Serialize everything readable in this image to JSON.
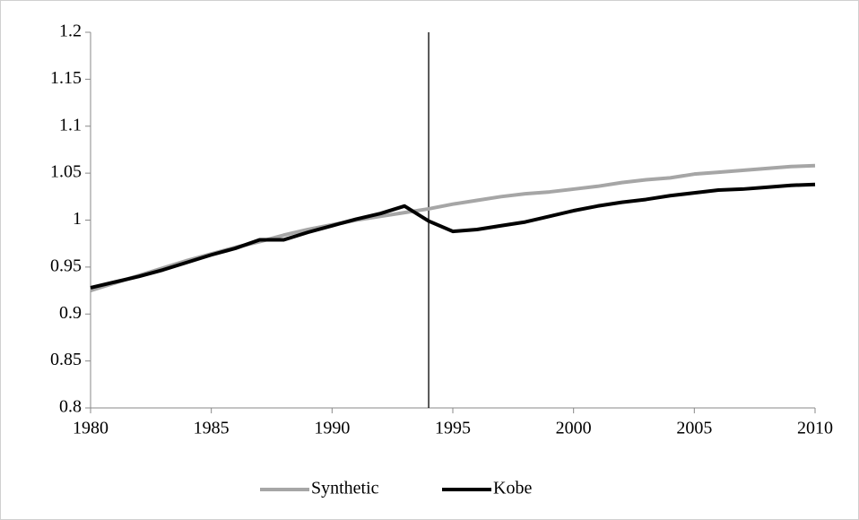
{
  "chart_data": {
    "type": "line",
    "x": [
      1980,
      1981,
      1982,
      1983,
      1984,
      1985,
      1986,
      1987,
      1988,
      1989,
      1990,
      1991,
      1992,
      1993,
      1994,
      1995,
      1996,
      1997,
      1998,
      1999,
      2000,
      2001,
      2002,
      2003,
      2004,
      2005,
      2006,
      2007,
      2008,
      2009,
      2010
    ],
    "series": [
      {
        "name": "Synthetic",
        "color": "#a6a6a6",
        "values": [
          0.925,
          0.933,
          0.941,
          0.949,
          0.957,
          0.964,
          0.971,
          0.977,
          0.984,
          0.99,
          0.995,
          1.0,
          1.004,
          1.008,
          1.012,
          1.017,
          1.021,
          1.025,
          1.028,
          1.03,
          1.033,
          1.036,
          1.04,
          1.043,
          1.045,
          1.049,
          1.051,
          1.053,
          1.055,
          1.057,
          1.058
        ]
      },
      {
        "name": "Kobe",
        "color": "#000000",
        "values": [
          0.928,
          0.934,
          0.94,
          0.947,
          0.955,
          0.963,
          0.97,
          0.979,
          0.979,
          0.987,
          0.994,
          1.001,
          1.007,
          1.015,
          0.999,
          0.988,
          0.99,
          0.994,
          0.998,
          1.004,
          1.01,
          1.015,
          1.019,
          1.022,
          1.026,
          1.029,
          1.032,
          1.033,
          1.035,
          1.037,
          1.038
        ]
      }
    ],
    "xlim": [
      1980,
      2010
    ],
    "xticks": [
      1980,
      1985,
      1990,
      1995,
      2000,
      2005,
      2010
    ],
    "ylim": [
      0.8,
      1.2
    ],
    "yticks": [
      0.8,
      0.85,
      0.9,
      0.95,
      1,
      1.05,
      1.1,
      1.15,
      1.2
    ],
    "grid": false,
    "vertical_line": 1994,
    "legend": "bottom"
  }
}
